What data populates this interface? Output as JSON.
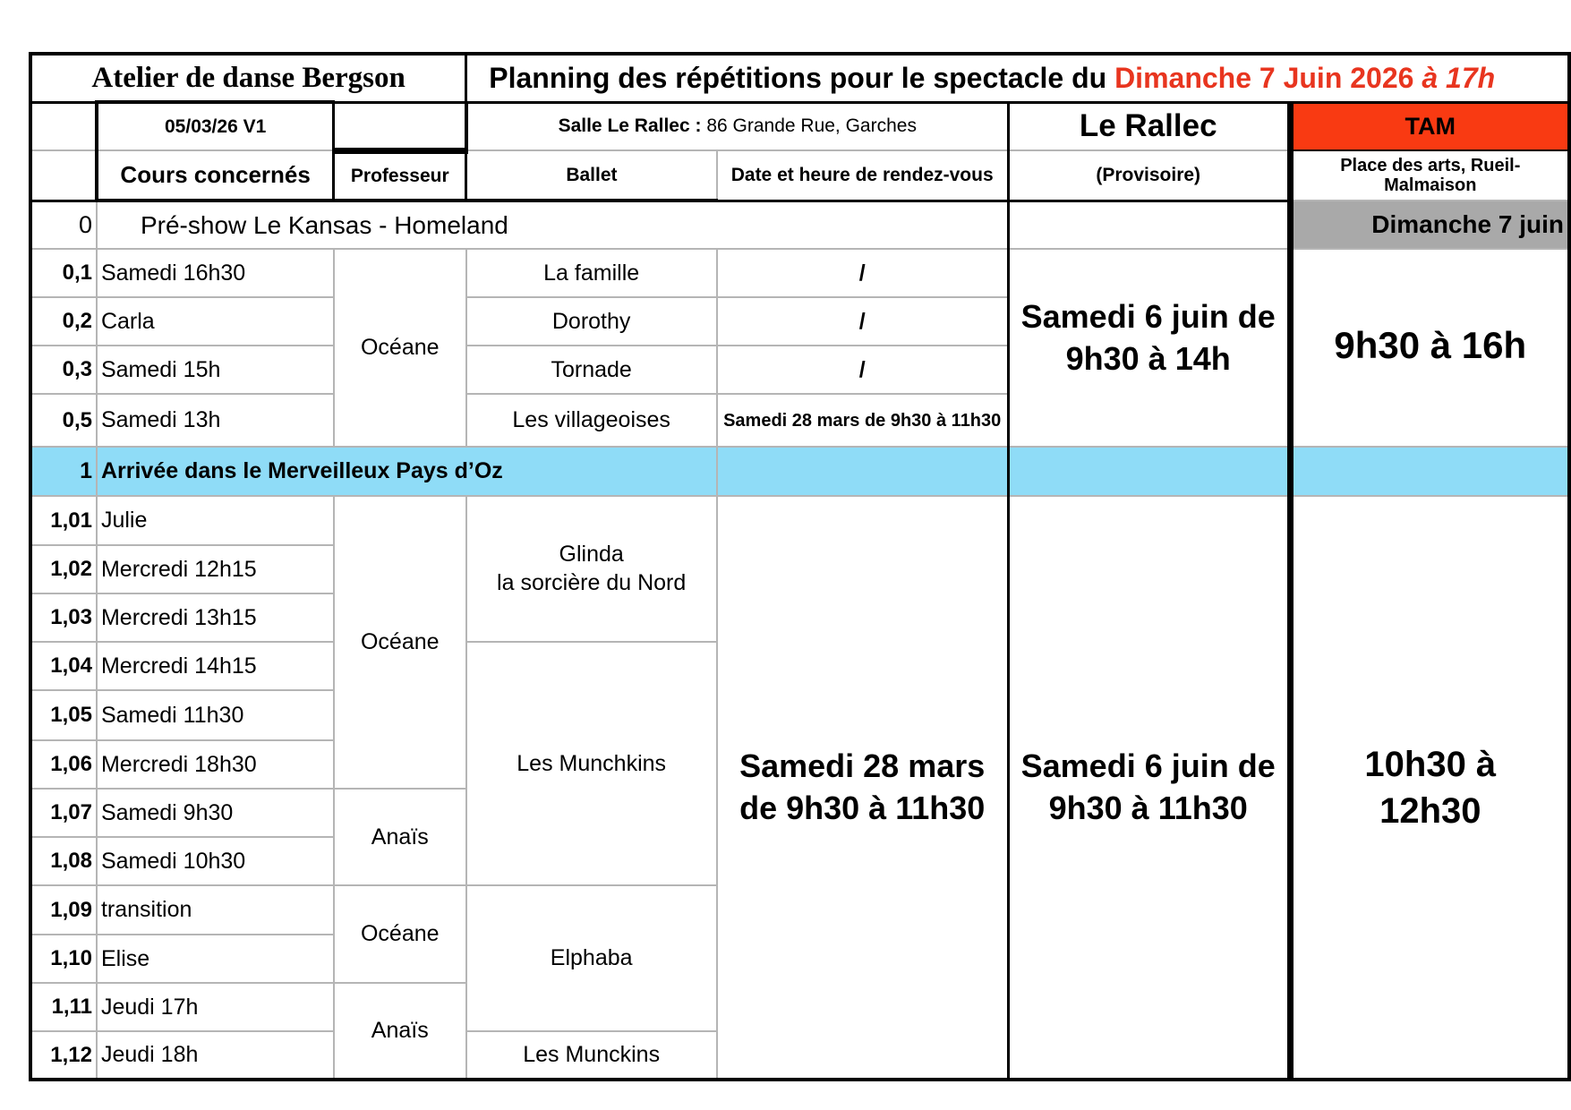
{
  "header": {
    "school": "Atelier de danse Bergson",
    "title_prefix": "Planning des répétitions pour le spectacle du ",
    "title_date": "Dimanche 7 Juin 2026 ",
    "title_time": "à 17h",
    "version": "05/03/26 V1",
    "venue_label": "Salle Le Rallec :",
    "venue_address": " 86 Grande Rue, Garches",
    "rallec": "Le Rallec",
    "tam": "TAM",
    "accent_color": "#f93a12"
  },
  "columns": {
    "cours": "Cours concernés",
    "prof": "Professeur",
    "ballet": "Ballet",
    "date": "Date et heure de rendez-vous",
    "rallec": "(Provisoire)",
    "tam": "Place des arts, Rueil-Malmaison"
  },
  "section0": {
    "num": "0",
    "title": "Pré-show Le Kansas - Homeland",
    "tam": "Dimanche 7 juin",
    "rows": [
      {
        "num": "0,1",
        "cours": "Samedi 16h30",
        "ballet": "La famille",
        "date": "/"
      },
      {
        "num": "0,2",
        "cours": "Carla",
        "ballet": "Dorothy",
        "date": "/"
      },
      {
        "num": "0,3",
        "cours": "Samedi 15h",
        "ballet": "Tornade",
        "date": "/"
      },
      {
        "num": "0,5",
        "cours": "Samedi 13h",
        "ballet": "Les villageoises",
        "date": "Samedi 28 mars de 9h30 à 11h30"
      }
    ],
    "prof": "Océane",
    "rallec": "Samedi 6 juin de 9h30 à 14h",
    "tam_time": "9h30 à 16h"
  },
  "section1": {
    "num": "1",
    "title": "Arrivée dans le Merveilleux Pays d’Oz",
    "color": "#8fdcf7",
    "rows": [
      {
        "num": "1,01",
        "cours": "Julie"
      },
      {
        "num": "1,02",
        "cours": "Mercredi 12h15"
      },
      {
        "num": "1,03",
        "cours": "Mercredi 13h15"
      },
      {
        "num": "1,04",
        "cours": "Mercredi 14h15"
      },
      {
        "num": "1,05",
        "cours": "Samedi 11h30"
      },
      {
        "num": "1,06",
        "cours": "Mercredi 18h30"
      },
      {
        "num": "1,07",
        "cours": "Samedi 9h30"
      },
      {
        "num": "1,08",
        "cours": "Samedi 10h30"
      },
      {
        "num": "1,09",
        "cours": "transition"
      },
      {
        "num": "1,10",
        "cours": "Elise"
      },
      {
        "num": "1,11",
        "cours": "Jeudi 17h"
      },
      {
        "num": "1,12",
        "cours": "Jeudi 18h"
      }
    ],
    "profs": [
      "Océane",
      "Anaïs",
      "Océane",
      "Anaïs"
    ],
    "ballets": [
      "Glinda\nla sorcière du Nord",
      "Les Munchkins",
      "Elphaba",
      "Les Munckins"
    ],
    "date": "Samedi 28 mars de 9h30 à 11h30",
    "rallec": "Samedi 6 juin de 9h30 à 11h30",
    "tam_time": "10h30 à 12h30"
  }
}
